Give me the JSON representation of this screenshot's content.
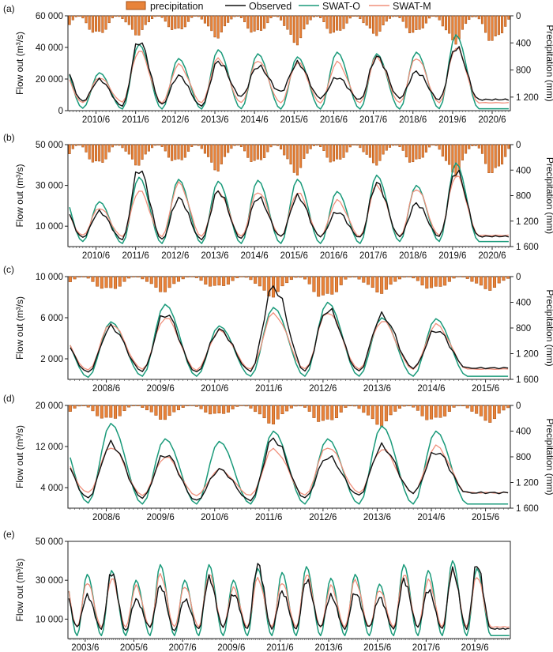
{
  "legend": {
    "precipitation": "precipitation",
    "observed": "Observed",
    "swat_o": "SWAT-O",
    "swat_m": "SWAT-M"
  },
  "colors": {
    "precipitation_fill": "#e8833a",
    "precipitation_edge": "#a44d12",
    "observed": "#111111",
    "swat_o": "#1a9a7a",
    "swat_m": "#f0907c"
  },
  "chart_data": [
    {
      "panel_label": "(a)",
      "type": "line",
      "ylabel": "Flow out (m³/s)",
      "y2label": "Precipitation (mm)",
      "start": "2009-10",
      "months": 134,
      "ylim": [
        0,
        60000
      ],
      "yticks": [
        "60 000",
        "40 000",
        "20 000",
        "0"
      ],
      "y2lim": [
        0,
        1400
      ],
      "y2ticks": [
        "0",
        "400",
        "800",
        "1 200"
      ],
      "xticks": [
        "2010/6",
        "2011/6",
        "2012/6",
        "2013/6",
        "2014/6",
        "2015/6",
        "2016/6",
        "2017/6",
        "2018/6",
        "2019/6",
        "2020/6"
      ],
      "peaks": {
        "observed": [
          34000,
          19500,
          44000,
          22000,
          31000,
          28000,
          30000,
          21000,
          34000,
          24500,
          40000
        ],
        "swat_o": [
          36000,
          24000,
          42000,
          33000,
          38500,
          36000,
          34000,
          37000,
          36000,
          37000,
          48000
        ],
        "swat_m": [
          28000,
          21000,
          38000,
          29000,
          33000,
          32000,
          30500,
          30500,
          34000,
          33500,
          40000
        ]
      },
      "troughs": {
        "observed": [
          3000,
          6000,
          3000,
          4000,
          3000,
          9000,
          12000,
          8000,
          7000,
          8000,
          7000
        ],
        "swat_o": [
          1500,
          1500,
          1000,
          1000,
          1000,
          1200,
          1000,
          1000,
          1000,
          1000,
          1200
        ],
        "swat_m": [
          5000,
          5000,
          5500,
          5000,
          5000,
          5000,
          5000,
          5000,
          5000,
          5000,
          5000
        ]
      },
      "precip_peaks": [
        420,
        320,
        300,
        260,
        340,
        300,
        440,
        310,
        300,
        300,
        430
      ]
    },
    {
      "panel_label": "(b)",
      "type": "line",
      "ylabel": "Flow out (m³/s)",
      "y2label": "Precipitation (mm)",
      "start": "2009-10",
      "months": 134,
      "ylim": [
        0,
        50000
      ],
      "yticks": [
        "50 000",
        "30 000",
        "10 000"
      ],
      "y2lim": [
        0,
        1600
      ],
      "y2ticks": [
        "0",
        "400",
        "800",
        "1 200",
        "1 600"
      ],
      "xticks": [
        "2010/6",
        "2011/6",
        "2012/6",
        "2013/6",
        "2014/6",
        "2015/6",
        "2016/6",
        "2017/6",
        "2018/6",
        "2019/6",
        "2020/6"
      ],
      "peaks": {
        "observed": [
          23000,
          17000,
          38000,
          23500,
          27000,
          24000,
          24500,
          17000,
          31000,
          21000,
          37000
        ],
        "swat_o": [
          30000,
          22000,
          34000,
          33000,
          32000,
          32500,
          33000,
          27000,
          35000,
          30000,
          41000
        ],
        "swat_m": [
          21500,
          19000,
          27500,
          31000,
          27000,
          27000,
          26500,
          22500,
          30000,
          28500,
          35000
        ]
      },
      "troughs": {
        "observed": [
          3500,
          4500,
          3500,
          3500,
          3500,
          4000,
          5000,
          5000,
          4500,
          5000,
          5000
        ],
        "swat_o": [
          1500,
          2500,
          1500,
          1500,
          1500,
          1500,
          1500,
          1500,
          1500,
          2500,
          2500
        ],
        "swat_m": [
          5000,
          5500,
          5000,
          5000,
          5000,
          5000,
          5000,
          5000,
          5000,
          5000,
          5500
        ]
      },
      "precip_peaks": [
        460,
        360,
        340,
        320,
        430,
        330,
        490,
        330,
        330,
        330,
        520
      ]
    },
    {
      "panel_label": "(c)",
      "type": "line",
      "ylabel": "Flow out (m³/s)",
      "y2label": "Precipitation (mm)",
      "start": "2007-10",
      "months": 98,
      "ylim": [
        0,
        10000
      ],
      "yticks": [
        "10 000",
        "6 000",
        "2 000"
      ],
      "y2lim": [
        0,
        1600
      ],
      "y2ticks": [
        "0",
        "400",
        "800",
        "1 200",
        "1 600"
      ],
      "xticks": [
        "2008/6",
        "2009/6",
        "2010/6",
        "2011/6",
        "2012/6",
        "2013/6",
        "2014/6",
        "2015/6"
      ],
      "peaks": {
        "observed": [
          4600,
          5100,
          6400,
          4800,
          9000,
          6800,
          6200,
          4800
        ],
        "swat_o": [
          5300,
          5600,
          7300,
          5200,
          7000,
          7500,
          6000,
          5900
        ],
        "swat_m": [
          4700,
          5400,
          6000,
          4700,
          6400,
          6600,
          5700,
          5300
        ]
      },
      "troughs": {
        "observed": [
          700,
          700,
          800,
          700,
          800,
          800,
          800,
          1100
        ],
        "swat_o": [
          200,
          200,
          300,
          300,
          300,
          300,
          300,
          300
        ],
        "swat_m": [
          900,
          900,
          1000,
          900,
          1000,
          1000,
          1000,
          1000
        ]
      },
      "precip_peaks": [
        260,
        240,
        250,
        190,
        330,
        380,
        270,
        220
      ]
    },
    {
      "panel_label": "(d)",
      "type": "line",
      "ylabel": "Flow out (m³/s)",
      "y2label": "Precipitation (mm)",
      "start": "2007-10",
      "months": 98,
      "ylim": [
        0,
        20000
      ],
      "yticks": [
        "20 000",
        "12 000",
        "4 000"
      ],
      "y2lim": [
        0,
        1600
      ],
      "y2ticks": [
        "0",
        "400",
        "800",
        "1 200",
        "1 600"
      ],
      "xticks": [
        "2008/6",
        "2009/6",
        "2010/6",
        "2011/6",
        "2012/6",
        "2013/6",
        "2014/6",
        "2015/6"
      ],
      "peaks": {
        "observed": [
          11500,
          12500,
          10500,
          7500,
          13500,
          10000,
          12000,
          11000
        ],
        "swat_o": [
          15500,
          16500,
          13500,
          13000,
          15000,
          13500,
          16000,
          15000
        ],
        "swat_m": [
          11000,
          12000,
          10000,
          7500,
          11500,
          12000,
          11500,
          12000
        ]
      },
      "troughs": {
        "observed": [
          2500,
          2000,
          2000,
          1500,
          1500,
          2000,
          2500,
          3000
        ],
        "swat_o": [
          1000,
          1000,
          800,
          800,
          800,
          800,
          800,
          800
        ],
        "swat_m": [
          3000,
          3000,
          2500,
          2500,
          2500,
          2500,
          3000,
          3000
        ]
      },
      "precip_peaks": [
        300,
        260,
        230,
        170,
        300,
        310,
        330,
        270
      ]
    },
    {
      "panel_label": "(e)",
      "type": "line",
      "ylabel": "Flow out (m³/s)",
      "start": "2002-10",
      "months": 218,
      "ylim": [
        0,
        50000
      ],
      "yticks": [
        "50 000",
        "30 000",
        "10 000"
      ],
      "xticks": [
        "2003/6",
        "2005/6",
        "2007/6",
        "2009/6",
        "2011/6",
        "2013/6",
        "2015/6",
        "2017/6",
        "2019/6"
      ],
      "peaks": {
        "observed": [
          30000,
          22000,
          34000,
          20000,
          27000,
          20000,
          31000,
          23000,
          38000,
          24000,
          30000,
          22000,
          23500,
          21000,
          30000,
          25000,
          35000,
          38000
        ],
        "swat_o": [
          39000,
          33000,
          35000,
          30000,
          38000,
          30000,
          38000,
          30000,
          36000,
          34000,
          37000,
          31000,
          33000,
          28000,
          38000,
          35000,
          40000,
          36000
        ],
        "swat_m": [
          35000,
          29000,
          31000,
          27000,
          33000,
          27000,
          33000,
          26000,
          31000,
          29000,
          33000,
          27000,
          30000,
          25000,
          33000,
          30000,
          35000,
          32000
        ]
      },
      "troughs": {
        "observed": [
          4000,
          6000,
          5000,
          4000,
          6000,
          4000,
          5000,
          6000,
          5000,
          5000,
          5000,
          6000,
          5000,
          6000,
          5000,
          6000,
          5000,
          5000
        ],
        "swat_o": [
          1500,
          1500,
          1500,
          1500,
          1500,
          1500,
          1500,
          1500,
          1500,
          1500,
          1500,
          1500,
          1500,
          1500,
          1500,
          1500,
          1500,
          1500
        ],
        "swat_m": [
          6000,
          6000,
          6000,
          6000,
          6000,
          6000,
          6000,
          6000,
          6000,
          6000,
          6000,
          6000,
          6000,
          6000,
          6000,
          6000,
          6000,
          6000
        ]
      }
    }
  ]
}
